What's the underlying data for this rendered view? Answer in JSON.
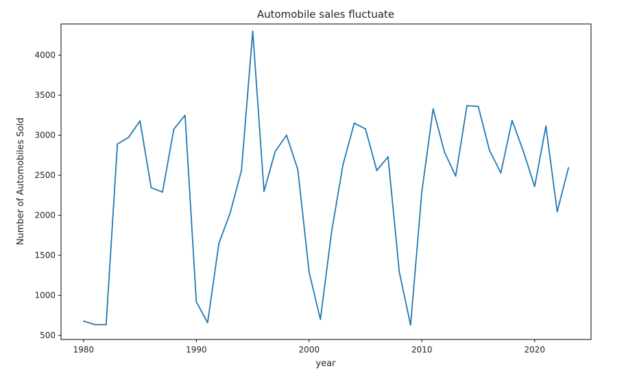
{
  "chart_data": {
    "type": "line",
    "title": "Automobile sales fluctuate",
    "xlabel": "year",
    "ylabel": "Number of Automobiles Sold",
    "xlim": [
      1978,
      2025
    ],
    "ylim": [
      450,
      4390
    ],
    "grid": false,
    "x_ticks": [
      1980,
      1990,
      2000,
      2010,
      2020
    ],
    "y_ticks": [
      500,
      1000,
      1500,
      2000,
      2500,
      3000,
      3500,
      4000
    ],
    "line_color": "#1f77b4",
    "series": [
      {
        "x": [
          1980,
          1981,
          1982,
          1983,
          1984,
          1985,
          1986,
          1987,
          1988,
          1989,
          1990,
          1991,
          1992,
          1993,
          1994,
          1995,
          1996,
          1997,
          1998,
          1999,
          2000,
          2001,
          2002,
          2003,
          2004,
          2005,
          2006,
          2007,
          2008,
          2009,
          2010,
          2011,
          2012,
          2013,
          2014,
          2015,
          2016,
          2017,
          2018,
          2019,
          2020,
          2021,
          2022,
          2023
        ],
        "values": [
          680,
          635,
          635,
          2890,
          2975,
          3180,
          2345,
          2290,
          3075,
          3250,
          920,
          660,
          1650,
          2030,
          2560,
          4300,
          2300,
          2800,
          3000,
          2570,
          1290,
          700,
          1800,
          2630,
          3150,
          3080,
          2560,
          2730,
          1290,
          630,
          2300,
          3330,
          2790,
          2490,
          3370,
          3360,
          2810,
          2530,
          3185,
          2800,
          2360,
          3115,
          2045,
          2595
        ]
      }
    ]
  }
}
